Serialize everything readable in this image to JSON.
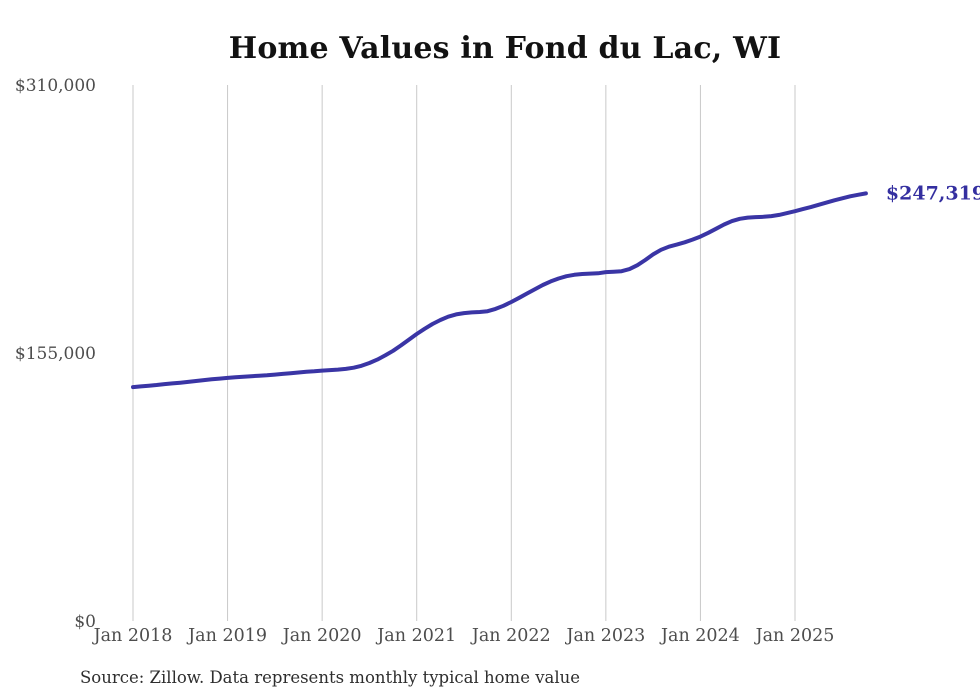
{
  "chart": {
    "title": "Home Values in Fond du Lac, WI",
    "source_note": "Source: Zillow. Data represents monthly typical home value",
    "end_label": "$247,319",
    "colors": {
      "line": "#3a35a5",
      "end_label": "#342fa0",
      "grid": "#c9c9c9",
      "axis_text": "#4d4d4d",
      "title_text": "#121212",
      "source_text": "#2e2e2e",
      "background": "#ffffff"
    },
    "chart_data": {
      "type": "line",
      "title": "Home Values in Fond du Lac, WI",
      "xlabel": "",
      "ylabel": "",
      "ylim": [
        0,
        310000
      ],
      "grid": "vertical-only",
      "legend": "none",
      "y_ticks": [
        {
          "value": 0,
          "label": "$0"
        },
        {
          "value": 155000,
          "label": "$155,000"
        },
        {
          "value": 310000,
          "label": "$310,000"
        }
      ],
      "x_tick_labels": [
        "Jan 2018",
        "Jan 2019",
        "Jan 2020",
        "Jan 2021",
        "Jan 2022",
        "Jan 2023",
        "Jan 2024",
        "Jan 2025"
      ],
      "series_name": "Typical home value (monthly)",
      "months": [
        "2018-01",
        "2018-02",
        "2018-03",
        "2018-04",
        "2018-05",
        "2018-06",
        "2018-07",
        "2018-08",
        "2018-09",
        "2018-10",
        "2018-11",
        "2018-12",
        "2019-01",
        "2019-02",
        "2019-03",
        "2019-04",
        "2019-05",
        "2019-06",
        "2019-07",
        "2019-08",
        "2019-09",
        "2019-10",
        "2019-11",
        "2019-12",
        "2020-01",
        "2020-02",
        "2020-03",
        "2020-04",
        "2020-05",
        "2020-06",
        "2020-07",
        "2020-08",
        "2020-09",
        "2020-10",
        "2020-11",
        "2020-12",
        "2021-01",
        "2021-02",
        "2021-03",
        "2021-04",
        "2021-05",
        "2021-06",
        "2021-07",
        "2021-08",
        "2021-09",
        "2021-10",
        "2021-11",
        "2021-12",
        "2022-01",
        "2022-02",
        "2022-03",
        "2022-04",
        "2022-05",
        "2022-06",
        "2022-07",
        "2022-08",
        "2022-09",
        "2022-10",
        "2022-11",
        "2022-12",
        "2023-01",
        "2023-02",
        "2023-03",
        "2023-04",
        "2023-05",
        "2023-06",
        "2023-07",
        "2023-08",
        "2023-09",
        "2023-10",
        "2023-11",
        "2023-12",
        "2024-01",
        "2024-02",
        "2024-03",
        "2024-04",
        "2024-05",
        "2024-06",
        "2024-07",
        "2024-08",
        "2024-09",
        "2024-10",
        "2024-11",
        "2024-12",
        "2025-01",
        "2025-02",
        "2025-03",
        "2025-04",
        "2025-05",
        "2025-06",
        "2025-07",
        "2025-08",
        "2025-09",
        "2025-10"
      ],
      "values": [
        135300,
        135700,
        136100,
        136500,
        137000,
        137400,
        137800,
        138300,
        138800,
        139300,
        139800,
        140200,
        140600,
        141000,
        141300,
        141600,
        141800,
        142100,
        142500,
        142900,
        143300,
        143700,
        144100,
        144400,
        144800,
        145100,
        145400,
        145800,
        146500,
        147600,
        149200,
        151200,
        153600,
        156300,
        159400,
        162700,
        166000,
        169000,
        171800,
        174100,
        176000,
        177300,
        178100,
        178500,
        178700,
        179200,
        180500,
        182300,
        184500,
        186900,
        189400,
        191900,
        194300,
        196400,
        198100,
        199400,
        200200,
        200700,
        200900,
        201100,
        201800,
        202000,
        202300,
        203500,
        205800,
        208800,
        212000,
        214700,
        216500,
        217700,
        219000,
        220600,
        222300,
        224500,
        226900,
        229300,
        231300,
        232600,
        233300,
        233600,
        233800,
        234200,
        234900,
        235900,
        237000,
        238200,
        239400,
        240700,
        242000,
        243300,
        244500,
        245600,
        246500,
        247319
      ],
      "final_value": 247319,
      "final_value_label": "$247,319"
    }
  }
}
